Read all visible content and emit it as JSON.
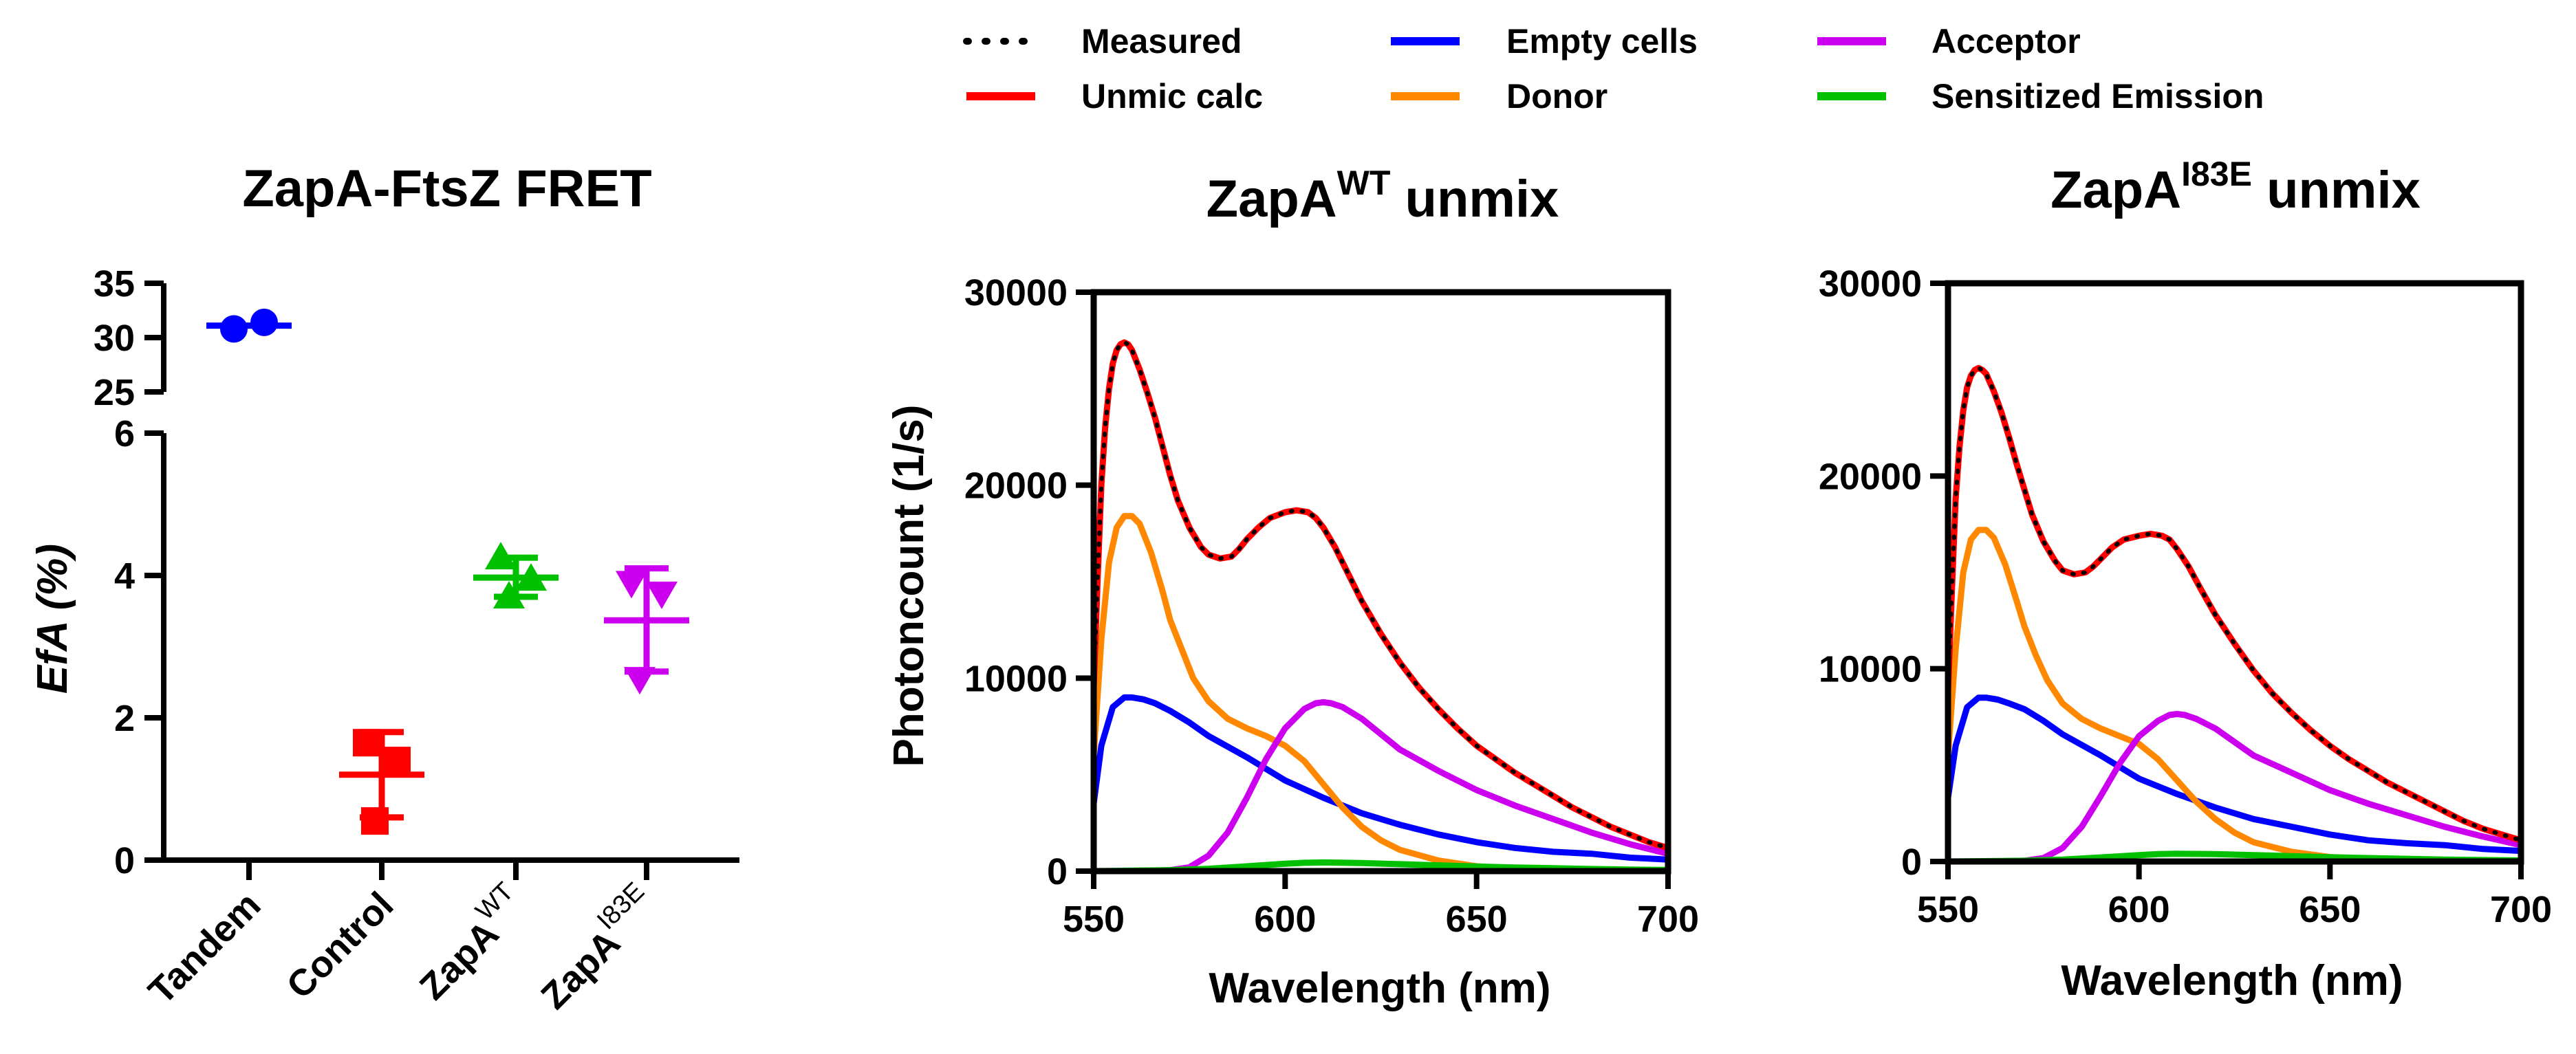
{
  "chart_data": [
    {
      "type": "scatter",
      "title": "ZapA-FtsZ FRET",
      "ylabel": "EfA (%)",
      "xlabel": "",
      "y_segments": [
        {
          "ylim": [
            25,
            35
          ],
          "ticks": [
            "25",
            "30",
            "35"
          ]
        },
        {
          "ylim": [
            0,
            6
          ],
          "ticks": [
            "0",
            "2",
            "4",
            "6"
          ]
        }
      ],
      "categories": [
        {
          "label": "Tandem",
          "sup": "",
          "color": "#0000ff",
          "marker": "circle",
          "points": [
            30.8,
            31.4
          ],
          "mean": 31.1,
          "sd_low": 31.1,
          "sd_high": 31.1
        },
        {
          "label": "Control",
          "sup": "",
          "color": "#ff0000",
          "marker": "square",
          "points": [
            1.65,
            1.4,
            0.55
          ],
          "mean": 1.2,
          "sd_low": 0.6,
          "sd_high": 1.8
        },
        {
          "label": "ZapA",
          "sup": "WT",
          "color": "#00c000",
          "marker": "triangle-up",
          "points": [
            4.25,
            3.95,
            3.7
          ],
          "mean": 3.97,
          "sd_low": 3.7,
          "sd_high": 4.25
        },
        {
          "label": "ZapA",
          "sup": "I83E",
          "color": "#cc00ee",
          "marker": "triangle-down",
          "points": [
            3.9,
            3.75,
            2.55
          ],
          "mean": 3.37,
          "sd_low": 2.65,
          "sd_high": 4.1
        }
      ]
    },
    {
      "type": "line",
      "title": "ZapA",
      "title_sup": "WT",
      "title_suffix": " unmix",
      "xlabel": "Wavelength (nm)",
      "ylabel": "Photoncount (1/s)",
      "xlim": [
        550,
        700
      ],
      "ylim": [
        0,
        30000
      ],
      "xticks": [
        "550",
        "600",
        "650",
        "700"
      ],
      "yticks": [
        "0",
        "10000",
        "20000",
        "30000"
      ],
      "series": [
        {
          "name": "Empty cells",
          "color": "#0000ff",
          "x": [
            550,
            552,
            555,
            558,
            560,
            563,
            566,
            570,
            575,
            580,
            590,
            600,
            610,
            620,
            630,
            640,
            650,
            660,
            670,
            680,
            690,
            700
          ],
          "y": [
            3500,
            6500,
            8500,
            9000,
            9000,
            8900,
            8700,
            8300,
            7700,
            7000,
            5900,
            4700,
            3800,
            3000,
            2400,
            1900,
            1500,
            1200,
            1000,
            900,
            700,
            600
          ]
        },
        {
          "name": "Donor",
          "color": "#ff8800",
          "x": [
            550,
            552,
            554,
            556,
            558,
            560,
            562,
            565,
            568,
            570,
            573,
            576,
            580,
            585,
            590,
            595,
            600,
            605,
            610,
            615,
            620,
            625,
            630,
            640,
            650,
            660,
            670,
            680,
            690,
            700
          ],
          "y": [
            6000,
            12000,
            16000,
            17800,
            18400,
            18400,
            18000,
            16500,
            14500,
            13000,
            11500,
            10000,
            8800,
            7900,
            7400,
            7000,
            6500,
            5700,
            4500,
            3300,
            2300,
            1600,
            1100,
            550,
            250,
            120,
            60,
            30,
            15,
            10
          ]
        },
        {
          "name": "Acceptor",
          "color": "#cc00ee",
          "x": [
            550,
            560,
            570,
            575,
            580,
            585,
            590,
            595,
            600,
            605,
            608,
            610,
            612,
            615,
            620,
            625,
            630,
            640,
            650,
            660,
            670,
            680,
            690,
            700
          ],
          "y": [
            0,
            0,
            50,
            200,
            800,
            2000,
            3800,
            5800,
            7400,
            8400,
            8700,
            8750,
            8700,
            8500,
            7900,
            7100,
            6300,
            5200,
            4200,
            3400,
            2700,
            2000,
            1400,
            900
          ]
        },
        {
          "name": "Sensitized Emission",
          "color": "#00c000",
          "x": [
            550,
            570,
            580,
            590,
            600,
            605,
            610,
            620,
            630,
            640,
            650,
            660,
            670,
            680,
            690,
            700
          ],
          "y": [
            0,
            50,
            120,
            250,
            380,
            430,
            450,
            420,
            360,
            300,
            240,
            190,
            150,
            110,
            80,
            60
          ]
        },
        {
          "name": "Unmic calc",
          "color": "#ff0000",
          "x": [
            550,
            551,
            552,
            553,
            554,
            555,
            556,
            557,
            558,
            559,
            560,
            562,
            564,
            566,
            568,
            570,
            572,
            575,
            578,
            580,
            583,
            586,
            588,
            590,
            593,
            596,
            600,
            603,
            606,
            608,
            610,
            613,
            616,
            620,
            625,
            630,
            635,
            640,
            645,
            650,
            655,
            660,
            665,
            670,
            675,
            680,
            685,
            690,
            695,
            700
          ],
          "y": [
            9500,
            15000,
            20000,
            23000,
            25000,
            26300,
            27000,
            27300,
            27400,
            27300,
            27000,
            26000,
            24800,
            23500,
            22000,
            20500,
            19200,
            17800,
            16800,
            16400,
            16200,
            16300,
            16700,
            17200,
            17800,
            18300,
            18600,
            18700,
            18600,
            18300,
            17800,
            16800,
            15600,
            14000,
            12300,
            10800,
            9500,
            8400,
            7400,
            6500,
            5800,
            5100,
            4500,
            3900,
            3300,
            2800,
            2300,
            1900,
            1500,
            1200
          ]
        },
        {
          "name": "Measured",
          "color": "#000000",
          "dotted": true,
          "x": [
            550,
            551,
            552,
            553,
            554,
            555,
            556,
            557,
            558,
            559,
            560,
            562,
            564,
            566,
            568,
            570,
            572,
            575,
            578,
            580,
            583,
            586,
            588,
            590,
            593,
            596,
            600,
            603,
            606,
            608,
            610,
            613,
            616,
            620,
            625,
            630,
            635,
            640,
            645,
            650,
            655,
            660,
            665,
            670,
            675,
            680,
            685,
            690,
            695,
            700
          ],
          "y": [
            9500,
            15000,
            20000,
            23000,
            25000,
            26300,
            27000,
            27300,
            27400,
            27300,
            27000,
            26000,
            24800,
            23500,
            22000,
            20500,
            19200,
            17800,
            16800,
            16400,
            16200,
            16300,
            16700,
            17200,
            17800,
            18300,
            18600,
            18700,
            18600,
            18300,
            17800,
            16800,
            15600,
            14000,
            12300,
            10800,
            9500,
            8400,
            7400,
            6500,
            5800,
            5100,
            4500,
            3900,
            3300,
            2800,
            2300,
            1900,
            1500,
            1200
          ]
        }
      ]
    },
    {
      "type": "line",
      "title": "ZapA",
      "title_sup": "I83E",
      "title_suffix": " unmix",
      "xlabel": "Wavelength (nm)",
      "ylabel": "",
      "xlim": [
        550,
        700
      ],
      "ylim": [
        0,
        30000
      ],
      "xticks": [
        "550",
        "600",
        "650",
        "700"
      ],
      "yticks": [
        "0",
        "10000",
        "20000",
        "30000"
      ],
      "series": [
        {
          "name": "Empty cells",
          "color": "#0000ff",
          "x": [
            550,
            552,
            555,
            558,
            560,
            563,
            566,
            570,
            575,
            580,
            590,
            600,
            610,
            620,
            630,
            640,
            650,
            660,
            670,
            680,
            690,
            700
          ],
          "y": [
            3300,
            6000,
            8000,
            8500,
            8500,
            8400,
            8200,
            7900,
            7300,
            6600,
            5500,
            4300,
            3500,
            2800,
            2200,
            1800,
            1400,
            1100,
            950,
            850,
            650,
            550
          ]
        },
        {
          "name": "Donor",
          "color": "#ff8800",
          "x": [
            550,
            552,
            554,
            556,
            558,
            560,
            562,
            565,
            568,
            570,
            573,
            576,
            580,
            585,
            590,
            595,
            600,
            605,
            610,
            615,
            620,
            625,
            630,
            640,
            650,
            660,
            670,
            680,
            690,
            700
          ],
          "y": [
            5500,
            11000,
            15000,
            16700,
            17200,
            17200,
            16800,
            15400,
            13500,
            12200,
            10700,
            9400,
            8200,
            7400,
            6900,
            6500,
            6100,
            5300,
            4200,
            3100,
            2200,
            1500,
            1000,
            500,
            230,
            110,
            55,
            30,
            15,
            10
          ]
        },
        {
          "name": "Acceptor",
          "color": "#cc00ee",
          "x": [
            550,
            560,
            570,
            575,
            580,
            585,
            590,
            595,
            600,
            605,
            608,
            610,
            612,
            615,
            620,
            625,
            630,
            640,
            650,
            660,
            670,
            680,
            690,
            700
          ],
          "y": [
            0,
            0,
            40,
            180,
            700,
            1800,
            3400,
            5100,
            6500,
            7300,
            7600,
            7650,
            7600,
            7400,
            6900,
            6200,
            5500,
            4600,
            3700,
            3000,
            2400,
            1800,
            1300,
            850
          ]
        },
        {
          "name": "Sensitized Emission",
          "color": "#00c000",
          "x": [
            550,
            570,
            580,
            590,
            600,
            605,
            610,
            620,
            630,
            640,
            650,
            660,
            670,
            680,
            690,
            700
          ],
          "y": [
            0,
            40,
            100,
            210,
            330,
            380,
            400,
            380,
            330,
            280,
            220,
            180,
            140,
            100,
            75,
            55
          ]
        },
        {
          "name": "Unmic calc",
          "color": "#ff0000",
          "x": [
            550,
            551,
            552,
            553,
            554,
            555,
            556,
            557,
            558,
            559,
            560,
            562,
            564,
            566,
            568,
            570,
            572,
            575,
            578,
            580,
            583,
            586,
            588,
            590,
            593,
            596,
            600,
            603,
            606,
            608,
            610,
            613,
            616,
            620,
            625,
            630,
            635,
            640,
            645,
            650,
            655,
            660,
            665,
            670,
            675,
            680,
            685,
            690,
            695,
            700
          ],
          "y": [
            8800,
            14000,
            18800,
            21500,
            23400,
            24600,
            25200,
            25500,
            25600,
            25500,
            25300,
            24400,
            23300,
            22000,
            20600,
            19300,
            18000,
            16600,
            15600,
            15100,
            14900,
            15000,
            15300,
            15700,
            16300,
            16700,
            16900,
            17000,
            16900,
            16700,
            16200,
            15300,
            14200,
            12800,
            11300,
            9900,
            8700,
            7700,
            6800,
            6000,
            5300,
            4700,
            4100,
            3600,
            3100,
            2600,
            2100,
            1700,
            1400,
            1100
          ]
        },
        {
          "name": "Measured",
          "color": "#000000",
          "dotted": true,
          "x": [
            550,
            551,
            552,
            553,
            554,
            555,
            556,
            557,
            558,
            559,
            560,
            562,
            564,
            566,
            568,
            570,
            572,
            575,
            578,
            580,
            583,
            586,
            588,
            590,
            593,
            596,
            600,
            603,
            606,
            608,
            610,
            613,
            616,
            620,
            625,
            630,
            635,
            640,
            645,
            650,
            655,
            660,
            665,
            670,
            675,
            680,
            685,
            690,
            695,
            700
          ],
          "y": [
            8800,
            14000,
            18800,
            21500,
            23400,
            24600,
            25200,
            25500,
            25600,
            25500,
            25300,
            24400,
            23300,
            22000,
            20600,
            19300,
            18000,
            16600,
            15600,
            15100,
            14900,
            15000,
            15300,
            15700,
            16300,
            16700,
            16900,
            17000,
            16900,
            16700,
            16200,
            15300,
            14200,
            12800,
            11300,
            9900,
            8700,
            7700,
            6800,
            6000,
            5300,
            4700,
            4100,
            3600,
            3100,
            2600,
            2100,
            1700,
            1400,
            1100
          ]
        }
      ]
    }
  ],
  "legend": {
    "entries": [
      {
        "label": "Measured",
        "color": "#000000",
        "dotted": true
      },
      {
        "label": "Unmic calc",
        "color": "#ff0000",
        "dotted": false
      },
      {
        "label": "Empty cells",
        "color": "#0000ff",
        "dotted": false
      },
      {
        "label": "Donor",
        "color": "#ff8800",
        "dotted": false
      },
      {
        "label": "Acceptor",
        "color": "#cc00ee",
        "dotted": false
      },
      {
        "label": "Sensitized Emission",
        "color": "#00c000",
        "dotted": false
      }
    ]
  }
}
